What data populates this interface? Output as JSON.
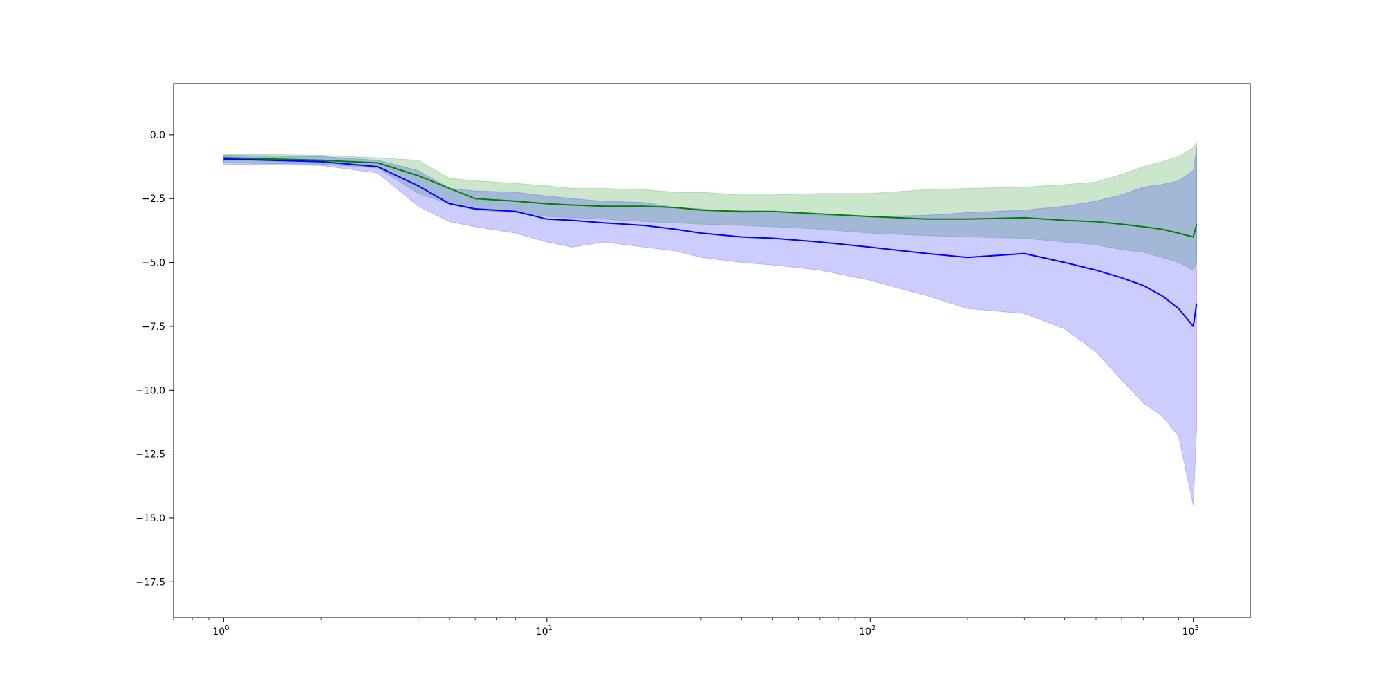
{
  "chart_data": {
    "type": "line",
    "title": "",
    "xlabel": "",
    "ylabel": "",
    "x_scale": "log",
    "xlim": [
      0.7,
      1500
    ],
    "ylim": [
      -18.9,
      2.0
    ],
    "grid": false,
    "legend": null,
    "x_ticks": [
      {
        "base": "10",
        "exp": "0",
        "value": 1
      },
      {
        "base": "10",
        "exp": "1",
        "value": 10
      },
      {
        "base": "10",
        "exp": "2",
        "value": 100
      },
      {
        "base": "10",
        "exp": "3",
        "value": 1000
      }
    ],
    "y_ticks": [
      {
        "label": "0.0",
        "value": 0
      },
      {
        "label": "−2.5",
        "value": -2.5
      },
      {
        "label": "−5.0",
        "value": -5
      },
      {
        "label": "−7.5",
        "value": -7.5
      },
      {
        "label": "−10.0",
        "value": -10
      },
      {
        "label": "−12.5",
        "value": -12.5
      },
      {
        "label": "−15.0",
        "value": -15
      },
      {
        "label": "−17.5",
        "value": -17.5
      }
    ],
    "series": [
      {
        "color": "#008000",
        "band_color": "#008000",
        "band_opacity": 0.2,
        "x": [
          1,
          2,
          3,
          4,
          5,
          6,
          8,
          10,
          12,
          15,
          20,
          25,
          30,
          40,
          50,
          70,
          100,
          150,
          200,
          300,
          400,
          500,
          600,
          700,
          800,
          900,
          1000,
          1024
        ],
        "mean": [
          -0.9,
          -1.0,
          -1.1,
          -1.6,
          -2.1,
          -2.5,
          -2.6,
          -2.7,
          -2.75,
          -2.8,
          -2.8,
          -2.85,
          -2.95,
          -3.0,
          -3.0,
          -3.1,
          -3.2,
          -3.3,
          -3.3,
          -3.25,
          -3.35,
          -3.4,
          -3.5,
          -3.6,
          -3.7,
          -3.85,
          -4.0,
          -3.5
        ],
        "lower": [
          -1.1,
          -1.15,
          -1.3,
          -2.3,
          -2.7,
          -2.95,
          -3.05,
          -3.2,
          -3.25,
          -3.3,
          -3.4,
          -3.45,
          -3.5,
          -3.55,
          -3.6,
          -3.7,
          -3.85,
          -3.95,
          -4.0,
          -4.05,
          -4.2,
          -4.3,
          -4.5,
          -4.6,
          -4.8,
          -5.0,
          -5.3,
          -5.0
        ],
        "upper": [
          -0.75,
          -0.8,
          -0.9,
          -1.0,
          -1.7,
          -1.8,
          -1.9,
          -2.0,
          -2.1,
          -2.1,
          -2.15,
          -2.25,
          -2.25,
          -2.35,
          -2.35,
          -2.3,
          -2.3,
          -2.15,
          -2.1,
          -2.05,
          -1.95,
          -1.85,
          -1.55,
          -1.25,
          -1.05,
          -0.85,
          -0.5,
          -0.3
        ]
      },
      {
        "color": "#0000ff",
        "band_color": "#0000ff",
        "band_opacity": 0.2,
        "x": [
          1,
          2,
          3,
          4,
          5,
          6,
          8,
          10,
          12,
          15,
          20,
          25,
          30,
          40,
          50,
          70,
          100,
          150,
          200,
          300,
          400,
          500,
          600,
          700,
          800,
          900,
          1000,
          1024
        ],
        "mean": [
          -0.95,
          -1.05,
          -1.25,
          -2.0,
          -2.7,
          -2.9,
          -3.0,
          -3.3,
          -3.35,
          -3.45,
          -3.55,
          -3.7,
          -3.85,
          -4.0,
          -4.05,
          -4.2,
          -4.4,
          -4.65,
          -4.8,
          -4.65,
          -5.0,
          -5.3,
          -5.6,
          -5.9,
          -6.3,
          -6.8,
          -7.5,
          -6.6
        ],
        "lower": [
          -1.15,
          -1.2,
          -1.5,
          -2.8,
          -3.4,
          -3.6,
          -3.85,
          -4.2,
          -4.4,
          -4.2,
          -4.4,
          -4.55,
          -4.8,
          -5.0,
          -5.1,
          -5.3,
          -5.7,
          -6.3,
          -6.8,
          -7.0,
          -7.6,
          -8.5,
          -9.6,
          -10.5,
          -11.0,
          -11.8,
          -14.5,
          -11.5
        ],
        "upper": [
          -0.8,
          -0.85,
          -1.0,
          -1.4,
          -2.1,
          -2.2,
          -2.25,
          -2.4,
          -2.5,
          -2.6,
          -2.65,
          -2.85,
          -2.9,
          -3.05,
          -3.0,
          -3.15,
          -3.2,
          -3.15,
          -3.05,
          -2.95,
          -2.8,
          -2.6,
          -2.35,
          -2.05,
          -1.95,
          -1.8,
          -1.4,
          -0.5
        ]
      }
    ]
  }
}
